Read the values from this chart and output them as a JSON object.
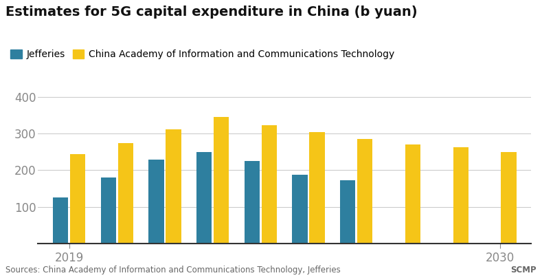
{
  "title": "Estimates for 5G capital expenditure in China (b yuan)",
  "legend_labels": [
    "Jefferies",
    "China Academy of Information and Communications Technology"
  ],
  "jefferies_color": "#2e7f9f",
  "caict_color": "#f5c518",
  "jefferies_vals": [
    125,
    180,
    230,
    250,
    225,
    188,
    172
  ],
  "caict_vals": [
    245,
    275,
    312,
    345,
    322,
    305,
    285,
    270,
    262,
    250
  ],
  "n_groups": 10,
  "ylim": [
    0,
    420
  ],
  "yticks": [
    100,
    200,
    300,
    400
  ],
  "source_text": "Sources: China Academy of Information and Communications Technology, Jefferies",
  "scmp_text": "SCMP",
  "background_color": "#ffffff",
  "grid_color": "#cccccc",
  "title_fontsize": 14,
  "legend_fontsize": 10,
  "tick_fontsize": 12,
  "source_fontsize": 8.5
}
